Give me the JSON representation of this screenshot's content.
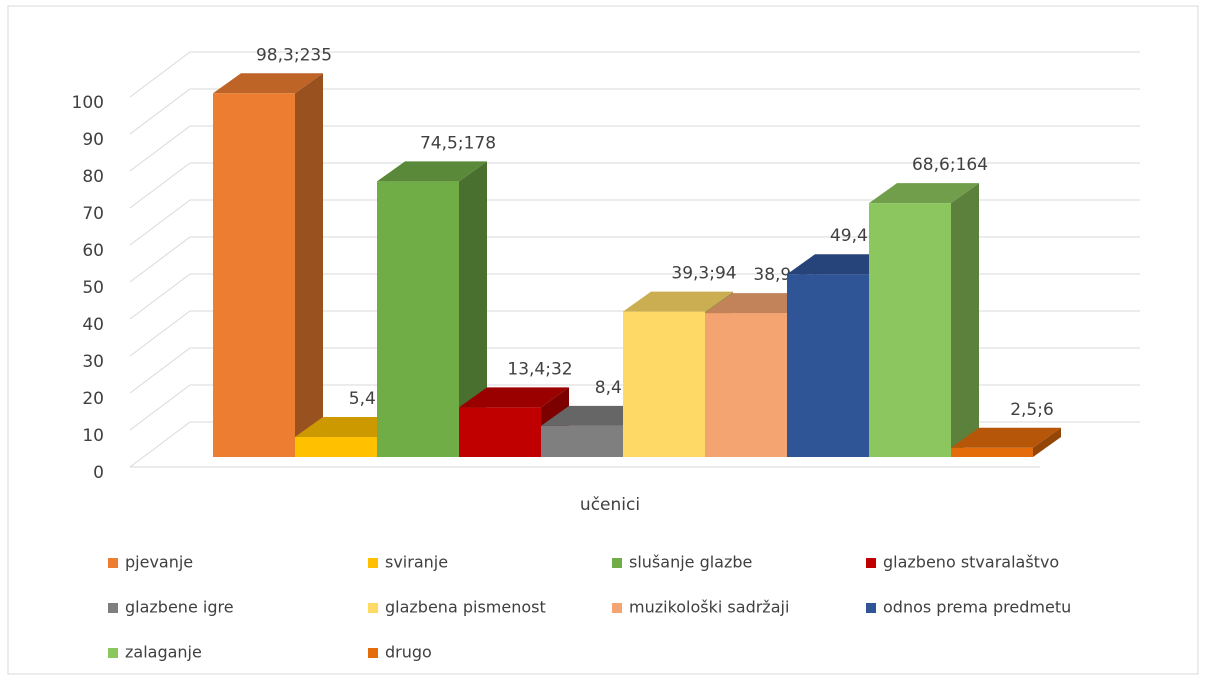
{
  "chart_data": {
    "type": "bar3d",
    "categories": [
      "učenici"
    ],
    "ylim": [
      0,
      100
    ],
    "yticks": [
      0,
      10,
      20,
      30,
      40,
      50,
      60,
      70,
      80,
      90,
      100
    ],
    "grid": true,
    "legend": "bottom",
    "series": [
      {
        "name": "pjevanje",
        "color": "#ed7d31",
        "values": [
          98.3
        ],
        "value_labels": [
          "98,3;235"
        ]
      },
      {
        "name": "sviranje",
        "color": "#ffc000",
        "values": [
          5.4
        ],
        "value_labels": [
          "5,4;13"
        ]
      },
      {
        "name": "slušanje glazbe",
        "color": "#70ad47",
        "values": [
          74.5
        ],
        "value_labels": [
          "74,5;178"
        ]
      },
      {
        "name": "glazbeno stvaralaštvo",
        "color": "#c00000",
        "values": [
          13.4
        ],
        "value_labels": [
          "13,4;32"
        ]
      },
      {
        "name": "glazbene igre",
        "color": "#7f7f7f",
        "values": [
          8.4
        ],
        "value_labels": [
          "8,4;20"
        ]
      },
      {
        "name": "glazbena pismenost",
        "color": "#ffd966",
        "values": [
          39.3
        ],
        "value_labels": [
          "39,3;94"
        ]
      },
      {
        "name": "muzikološki sadržaji",
        "color": "#f4a470",
        "values": [
          38.9
        ],
        "value_labels": [
          "38,9;93"
        ]
      },
      {
        "name": "odnos prema predmetu",
        "color": "#2f5597",
        "values": [
          49.4
        ],
        "value_labels": [
          "49,4;118"
        ]
      },
      {
        "name": "zalaganje",
        "color": "#8cc65e",
        "values": [
          68.6
        ],
        "value_labels": [
          "68,6;164"
        ]
      },
      {
        "name": "drugo",
        "color": "#e46c0a",
        "values": [
          2.5
        ],
        "value_labels": [
          "2,5;6"
        ]
      }
    ]
  }
}
